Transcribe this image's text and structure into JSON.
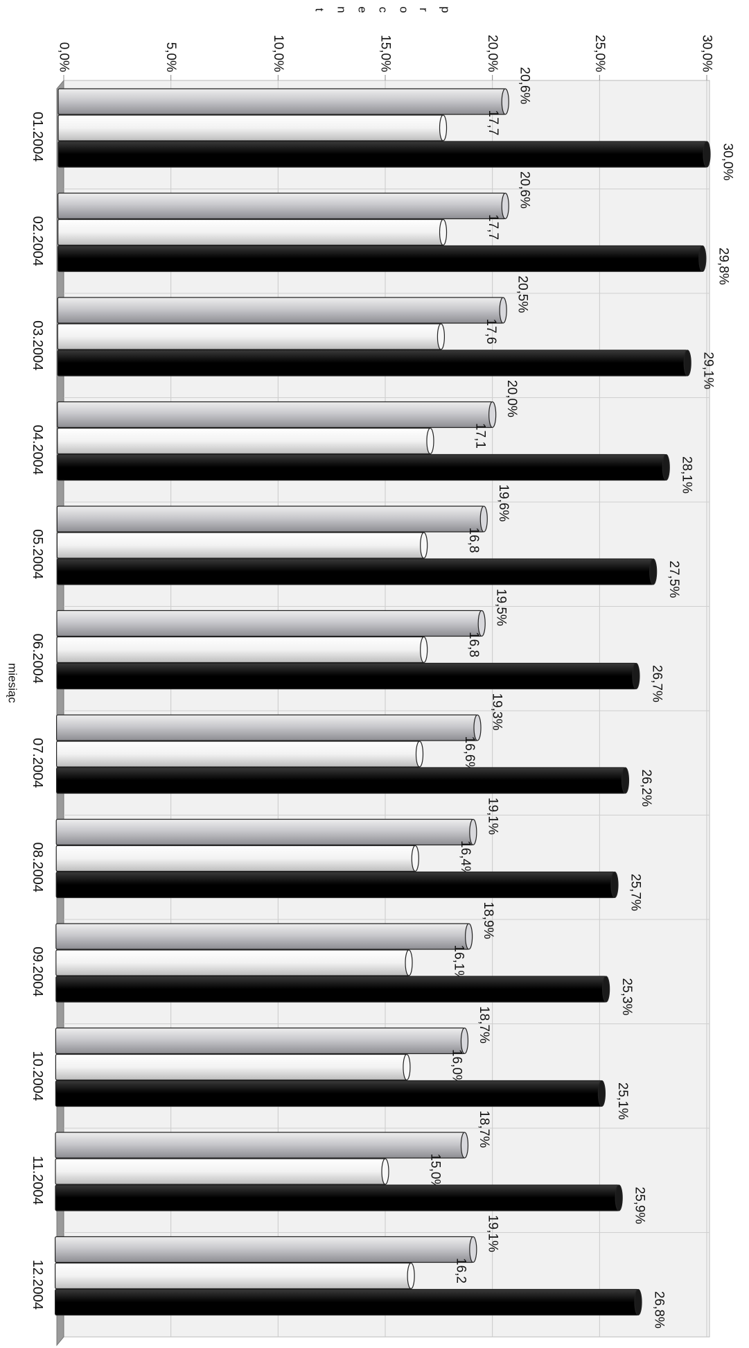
{
  "chart_data": {
    "type": "bar",
    "orientation": "horizontal-3d-cylinder",
    "xlabel": "miesiąc",
    "ylabel": "procent",
    "ylim": [
      0,
      30
    ],
    "y_ticks": [
      "0,0%",
      "5,0%",
      "10,0%",
      "15,0%",
      "20,0%",
      "25,0%",
      "30,0%"
    ],
    "categories": [
      "01.2004",
      "02.2004",
      "03.2004",
      "04.2004",
      "05.2004",
      "06.2004",
      "07.2004",
      "08.2004",
      "09.2004",
      "10.2004",
      "11.2004",
      "12.2004"
    ],
    "series": [
      {
        "values": [
          20.6,
          20.6,
          20.5,
          20.0,
          19.6,
          19.5,
          19.3,
          19.1,
          18.9,
          18.7,
          18.7,
          19.1
        ],
        "labels": [
          "20,6%",
          "20,6%",
          "20,5%",
          "20,0%",
          "19,6%",
          "19,5%",
          "19,3%",
          "19,1%",
          "18,9%",
          "18,7%",
          "18,7%",
          "19,1%"
        ],
        "color": "#c4c4c8"
      },
      {
        "values": [
          17.7,
          17.7,
          17.6,
          17.1,
          16.8,
          16.8,
          16.6,
          16.4,
          16.1,
          16.0,
          15.0,
          16.2
        ],
        "labels": [
          "17,7",
          "17,7",
          "17,6",
          "17,1",
          "16,8",
          "16,8",
          "16,6%",
          "16,4%",
          "16,1%",
          "16,0%",
          "15,0%",
          "16,2"
        ],
        "color": "#ececec"
      },
      {
        "values": [
          30.0,
          29.8,
          29.1,
          28.1,
          27.5,
          26.7,
          26.2,
          25.7,
          25.3,
          25.1,
          25.9,
          26.8
        ],
        "labels": [
          "30,0%",
          "29,8%",
          "29,1%",
          "28,1%",
          "27,5%",
          "26,7%",
          "26,2%",
          "25,7%",
          "25,3%",
          "25,1%",
          "25,9%",
          "26,8%"
        ],
        "color": "#000000"
      }
    ],
    "grid": true,
    "legend": "none"
  }
}
